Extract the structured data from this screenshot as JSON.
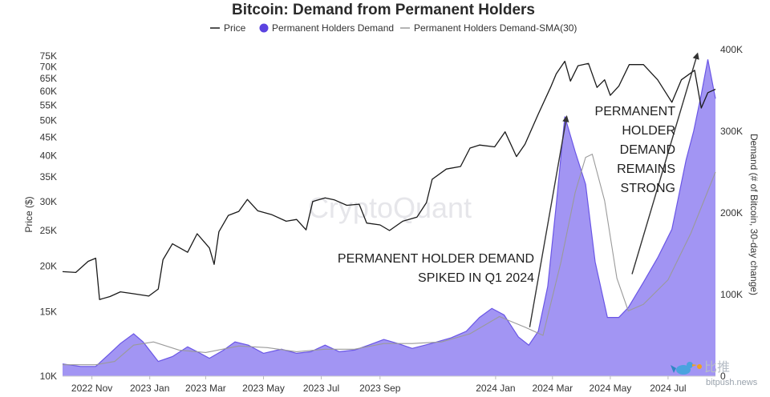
{
  "chart_data": {
    "type": "area",
    "title": "Bitcoin: Demand from Permanent Holders",
    "legend": {
      "placement": "top-center",
      "entries": [
        "Price",
        "Permanent Holders Demand",
        "Permanent Holders Demand-SMA(30)"
      ]
    },
    "colors": {
      "price": "#1a1a1a",
      "demand_fill": "#9d8ff2",
      "demand_line": "#6a56e6",
      "demand_dot": "#5b43e0",
      "sma": "#9a9a9a",
      "annotation": "#333333"
    },
    "y_left": {
      "label": "Price ($)",
      "scale": "log",
      "range": [
        10000,
        78000
      ],
      "ticks": [
        10000,
        15000,
        20000,
        25000,
        30000,
        35000,
        40000,
        45000,
        50000,
        55000,
        60000,
        65000,
        70000,
        75000
      ],
      "tick_labels": [
        "10K",
        "15K",
        "20K",
        "25K",
        "30K",
        "35K",
        "40K",
        "45K",
        "50K",
        "55K",
        "60K",
        "65K",
        "70K",
        "75K"
      ]
    },
    "y_right": {
      "label": "Demand (# of Bitcoin, 30-day change)",
      "scale": "linear",
      "range": [
        0,
        400000
      ],
      "ticks": [
        0,
        100000,
        200000,
        300000,
        400000
      ],
      "tick_labels": [
        "0",
        "100K",
        "200K",
        "300K",
        "400K"
      ]
    },
    "x_axis": {
      "range": [
        "2022-10-01",
        "2024-08-20"
      ],
      "ticks": [
        "2022-11-01",
        "2023-01-01",
        "2023-03-01",
        "2023-05-01",
        "2023-07-01",
        "2023-09-01",
        "2024-01-01",
        "2024-03-01",
        "2024-05-01",
        "2024-07-01"
      ],
      "tick_labels": [
        "2022 Nov",
        "2023 Jan",
        "2023 Mar",
        "2023 May",
        "2023 Jul",
        "2023 Sep",
        "2024 Jan",
        "2024 Mar",
        "2024 May",
        "2024 Jul"
      ]
    },
    "grid": false,
    "series": [
      {
        "name": "Price",
        "axis": "left",
        "points": [
          [
            "2022-10-01",
            19300
          ],
          [
            "2022-10-15",
            19200
          ],
          [
            "2022-10-28",
            20600
          ],
          [
            "2022-11-05",
            21000
          ],
          [
            "2022-11-09",
            16200
          ],
          [
            "2022-11-20",
            16500
          ],
          [
            "2022-12-01",
            17000
          ],
          [
            "2022-12-15",
            16800
          ],
          [
            "2022-12-31",
            16550
          ],
          [
            "2023-01-10",
            17300
          ],
          [
            "2023-01-15",
            20800
          ],
          [
            "2023-01-25",
            23000
          ],
          [
            "2023-02-10",
            21800
          ],
          [
            "2023-02-20",
            24500
          ],
          [
            "2023-03-05",
            22400
          ],
          [
            "2023-03-10",
            20200
          ],
          [
            "2023-03-15",
            24800
          ],
          [
            "2023-03-25",
            27500
          ],
          [
            "2023-04-05",
            28200
          ],
          [
            "2023-04-14",
            30400
          ],
          [
            "2023-04-25",
            28300
          ],
          [
            "2023-05-10",
            27600
          ],
          [
            "2023-05-25",
            26500
          ],
          [
            "2023-06-05",
            26800
          ],
          [
            "2023-06-15",
            25100
          ],
          [
            "2023-06-22",
            30000
          ],
          [
            "2023-07-05",
            30700
          ],
          [
            "2023-07-15",
            30300
          ],
          [
            "2023-07-28",
            29300
          ],
          [
            "2023-08-10",
            29500
          ],
          [
            "2023-08-18",
            26200
          ],
          [
            "2023-09-01",
            25900
          ],
          [
            "2023-09-11",
            25000
          ],
          [
            "2023-09-25",
            26500
          ],
          [
            "2023-10-10",
            27200
          ],
          [
            "2023-10-20",
            29800
          ],
          [
            "2023-10-26",
            34500
          ],
          [
            "2023-11-10",
            36800
          ],
          [
            "2023-11-25",
            37400
          ],
          [
            "2023-12-05",
            42000
          ],
          [
            "2023-12-15",
            42800
          ],
          [
            "2023-12-31",
            42300
          ],
          [
            "2024-01-11",
            46500
          ],
          [
            "2024-01-23",
            39800
          ],
          [
            "2024-02-01",
            43000
          ],
          [
            "2024-02-15",
            52000
          ],
          [
            "2024-02-28",
            61500
          ],
          [
            "2024-03-05",
            67000
          ],
          [
            "2024-03-14",
            72500
          ],
          [
            "2024-03-20",
            64000
          ],
          [
            "2024-03-28",
            70500
          ],
          [
            "2024-04-08",
            71500
          ],
          [
            "2024-04-17",
            61500
          ],
          [
            "2024-04-25",
            64500
          ],
          [
            "2024-05-01",
            58500
          ],
          [
            "2024-05-10",
            62000
          ],
          [
            "2024-05-21",
            71000
          ],
          [
            "2024-06-05",
            71000
          ],
          [
            "2024-06-20",
            64500
          ],
          [
            "2024-07-05",
            56000
          ],
          [
            "2024-07-15",
            64500
          ],
          [
            "2024-07-29",
            68500
          ],
          [
            "2024-08-05",
            54000
          ],
          [
            "2024-08-12",
            59500
          ],
          [
            "2024-08-20",
            60800
          ]
        ]
      },
      {
        "name": "Permanent Holders Demand",
        "axis": "right",
        "points": [
          [
            "2022-10-01",
            15000
          ],
          [
            "2022-10-20",
            12000
          ],
          [
            "2022-11-05",
            12000
          ],
          [
            "2022-11-20",
            28000
          ],
          [
            "2022-12-01",
            40000
          ],
          [
            "2022-12-15",
            52000
          ],
          [
            "2022-12-25",
            42000
          ],
          [
            "2023-01-10",
            18000
          ],
          [
            "2023-01-25",
            24000
          ],
          [
            "2023-02-10",
            36000
          ],
          [
            "2023-02-20",
            30000
          ],
          [
            "2023-03-05",
            22000
          ],
          [
            "2023-03-20",
            32000
          ],
          [
            "2023-04-01",
            42000
          ],
          [
            "2023-04-15",
            38000
          ],
          [
            "2023-05-01",
            28000
          ],
          [
            "2023-05-20",
            33000
          ],
          [
            "2023-06-05",
            28000
          ],
          [
            "2023-06-20",
            30000
          ],
          [
            "2023-07-05",
            38000
          ],
          [
            "2023-07-20",
            30000
          ],
          [
            "2023-08-05",
            32000
          ],
          [
            "2023-08-20",
            38000
          ],
          [
            "2023-09-05",
            45000
          ],
          [
            "2023-09-20",
            40000
          ],
          [
            "2023-10-05",
            34000
          ],
          [
            "2023-10-25",
            40000
          ],
          [
            "2023-11-15",
            47000
          ],
          [
            "2023-12-01",
            55000
          ],
          [
            "2023-12-15",
            72000
          ],
          [
            "2023-12-28",
            83000
          ],
          [
            "2024-01-10",
            75000
          ],
          [
            "2024-01-25",
            48000
          ],
          [
            "2024-02-05",
            38000
          ],
          [
            "2024-02-15",
            55000
          ],
          [
            "2024-02-25",
            110000
          ],
          [
            "2024-03-05",
            210000
          ],
          [
            "2024-03-14",
            318000
          ],
          [
            "2024-03-25",
            275000
          ],
          [
            "2024-04-05",
            235000
          ],
          [
            "2024-04-15",
            140000
          ],
          [
            "2024-04-28",
            72000
          ],
          [
            "2024-05-10",
            72000
          ],
          [
            "2024-05-20",
            84000
          ],
          [
            "2024-06-05",
            115000
          ],
          [
            "2024-06-20",
            145000
          ],
          [
            "2024-07-05",
            180000
          ],
          [
            "2024-07-20",
            265000
          ],
          [
            "2024-07-28",
            300000
          ],
          [
            "2024-08-05",
            345000
          ],
          [
            "2024-08-12",
            388000
          ],
          [
            "2024-08-20",
            340000
          ]
        ]
      },
      {
        "name": "Permanent Holders Demand-SMA(30)",
        "axis": "right",
        "points": [
          [
            "2022-10-01",
            14000
          ],
          [
            "2022-11-05",
            14000
          ],
          [
            "2022-11-25",
            18000
          ],
          [
            "2022-12-15",
            38000
          ],
          [
            "2023-01-05",
            42000
          ],
          [
            "2023-02-01",
            32000
          ],
          [
            "2023-03-01",
            29000
          ],
          [
            "2023-04-05",
            37000
          ],
          [
            "2023-05-05",
            35000
          ],
          [
            "2023-06-05",
            30000
          ],
          [
            "2023-07-05",
            33000
          ],
          [
            "2023-08-05",
            33000
          ],
          [
            "2023-09-05",
            40000
          ],
          [
            "2023-10-05",
            40000
          ],
          [
            "2023-11-05",
            42000
          ],
          [
            "2023-12-05",
            52000
          ],
          [
            "2024-01-05",
            73000
          ],
          [
            "2024-02-01",
            60000
          ],
          [
            "2024-02-20",
            50000
          ],
          [
            "2024-03-10",
            140000
          ],
          [
            "2024-03-25",
            225000
          ],
          [
            "2024-04-05",
            268000
          ],
          [
            "2024-04-12",
            272000
          ],
          [
            "2024-04-25",
            215000
          ],
          [
            "2024-05-08",
            120000
          ],
          [
            "2024-05-20",
            80000
          ],
          [
            "2024-06-05",
            88000
          ],
          [
            "2024-07-01",
            118000
          ],
          [
            "2024-07-25",
            175000
          ],
          [
            "2024-08-20",
            250000
          ]
        ]
      }
    ],
    "annotations": [
      {
        "text": [
          "PERMANENT HOLDER DEMAND",
          "SPIKED IN Q1 2024"
        ],
        "arrow_from": [
          "2024-02-06",
          60000
        ],
        "arrow_to": [
          "2024-03-16",
          318000
        ]
      },
      {
        "text": [
          "PERMANENT",
          "HOLDER",
          "DEMAND",
          "REMAINS",
          "STRONG"
        ],
        "arrow_from": [
          "2024-05-24",
          125000
        ],
        "arrow_to": [
          "2024-08-01",
          395000
        ]
      }
    ],
    "watermark": "CryptoQuant",
    "source_badge": {
      "text": "bitpush.news",
      "glyph": "比推"
    }
  }
}
